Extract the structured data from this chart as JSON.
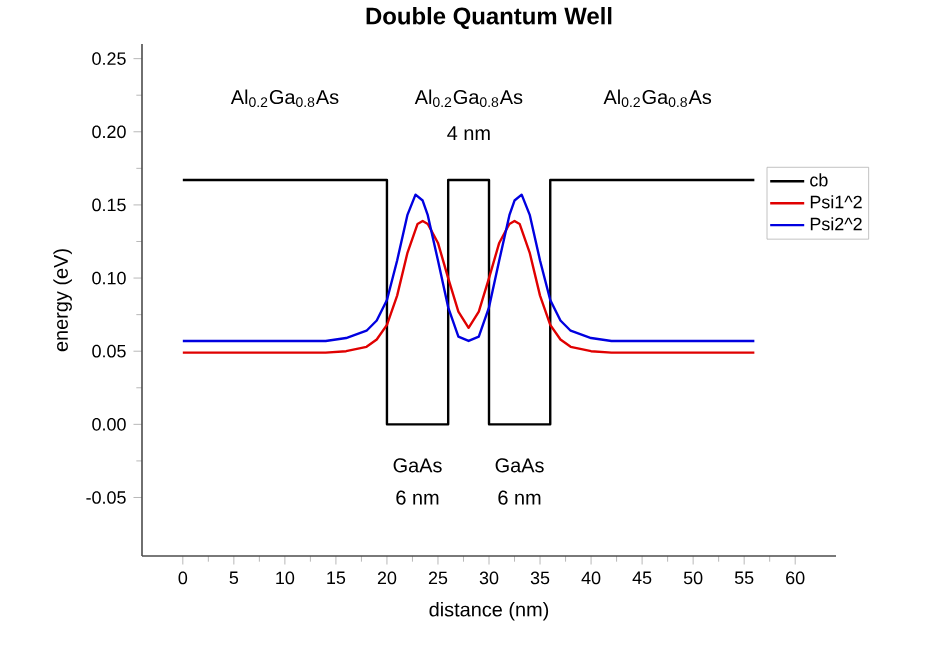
{
  "chart_data": {
    "type": "line",
    "title": "Double Quantum Well",
    "xlabel": "distance (nm)",
    "ylabel": "energy (eV)",
    "xlim": [
      -4,
      64
    ],
    "ylim": [
      -0.09,
      0.26
    ],
    "xticks": [
      0,
      5,
      10,
      15,
      20,
      25,
      30,
      35,
      40,
      45,
      50,
      55,
      60
    ],
    "yticks": [
      {
        "value": -0.05,
        "label": "-0.05"
      },
      {
        "value": 0,
        "label": "0.00"
      },
      {
        "value": 0.05,
        "label": "0.05"
      },
      {
        "value": 0.1,
        "label": "0.10"
      },
      {
        "value": 0.15,
        "label": "0.15"
      },
      {
        "value": 0.2,
        "label": "0.20"
      },
      {
        "value": 0.25,
        "label": "0.25"
      }
    ],
    "grid": false,
    "legend": "top right",
    "marker": "none",
    "line_style": "solid",
    "series": [
      {
        "name": "cb",
        "color": "#000000",
        "x": [
          0,
          20,
          20,
          26,
          26,
          30,
          30,
          36,
          36,
          56
        ],
        "values": [
          0.167,
          0.167,
          0,
          0,
          0.167,
          0.167,
          0,
          0,
          0.167,
          0.167
        ]
      },
      {
        "name": "Psi1^2",
        "color": "#e00000",
        "x": [
          0,
          14,
          16,
          18,
          19,
          20,
          21,
          22,
          23,
          23.5,
          24,
          25,
          26,
          27,
          28,
          29,
          30,
          31,
          32,
          32.5,
          33,
          34,
          35,
          36,
          37,
          38,
          40,
          42,
          56
        ],
        "values": [
          0.049,
          0.049,
          0.05,
          0.053,
          0.058,
          0.068,
          0.088,
          0.117,
          0.137,
          0.139,
          0.137,
          0.124,
          0.1,
          0.077,
          0.066,
          0.077,
          0.1,
          0.124,
          0.137,
          0.139,
          0.137,
          0.117,
          0.088,
          0.068,
          0.058,
          0.053,
          0.05,
          0.049,
          0.049
        ]
      },
      {
        "name": "Psi2^2",
        "color": "#0000e0",
        "x": [
          0,
          14,
          16,
          18,
          19,
          20,
          21,
          22,
          22.8,
          23.5,
          24,
          25,
          26,
          27,
          28,
          29,
          30,
          31,
          32,
          32.5,
          33.2,
          34,
          35,
          36,
          37,
          38,
          40,
          42,
          56
        ],
        "values": [
          0.057,
          0.057,
          0.059,
          0.064,
          0.071,
          0.085,
          0.112,
          0.143,
          0.157,
          0.153,
          0.143,
          0.112,
          0.08,
          0.06,
          0.057,
          0.06,
          0.08,
          0.112,
          0.143,
          0.153,
          0.157,
          0.143,
          0.112,
          0.085,
          0.071,
          0.064,
          0.059,
          0.057,
          0.057
        ]
      }
    ],
    "annotations": [
      "Al$_{0.2}$Ga$_{0.8}$As",
      "Al$_{0.2}$Ga$_{0.8}$As",
      "4 nm",
      "Al$_{0.2}$Ga$_{0.8}$As",
      "GaAs",
      "6 nm",
      "GaAs",
      "6 nm"
    ]
  }
}
